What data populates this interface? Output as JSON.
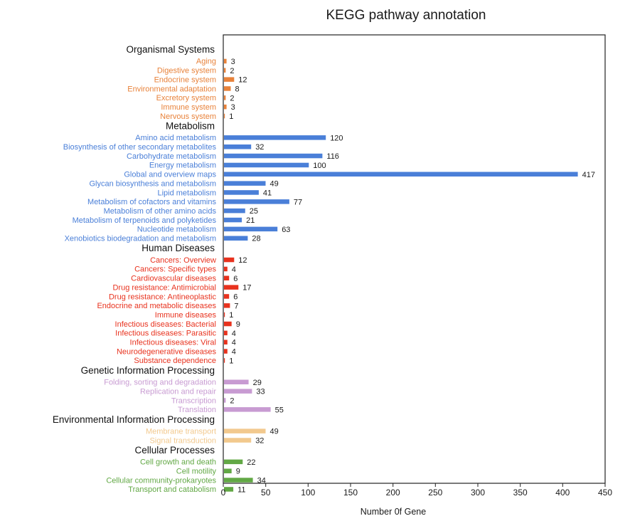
{
  "chart_data": {
    "type": "bar",
    "orientation": "horizontal",
    "title": "KEGG pathway annotation",
    "xlabel": "Number 0f Gene",
    "xlim": [
      0,
      450
    ],
    "xticks": [
      0,
      50,
      100,
      150,
      200,
      250,
      300,
      350,
      400,
      450
    ],
    "grid": false,
    "groups": [
      {
        "name": "Organismal Systems",
        "color": "#e8823a",
        "categories": [
          "Aging",
          "Digestive system",
          "Endocrine system",
          "Environmental adaptation",
          "Excretory system",
          "Immune system",
          "Nervous system"
        ],
        "values": [
          3,
          2,
          12,
          8,
          2,
          3,
          1
        ]
      },
      {
        "name": "Metabolism",
        "color": "#4a7fd8",
        "categories": [
          "Amino acid metabolism",
          "Biosynthesis of other secondary metabolites",
          "Carbohydrate metabolism",
          "Energy metabolism",
          "Global and overview maps",
          "Glycan biosynthesis and metabolism",
          "Lipid metabolism",
          "Metabolism of cofactors and vitamins",
          "Metabolism of other amino acids",
          "Metabolism of terpenoids and polyketides",
          "Nucleotide metabolism",
          "Xenobiotics biodegradation and metabolism"
        ],
        "values": [
          120,
          32,
          116,
          100,
          417,
          49,
          41,
          77,
          25,
          21,
          63,
          28
        ]
      },
      {
        "name": "Human Diseases",
        "color": "#e8321e",
        "categories": [
          "Cancers: Overview",
          "Cancers: Specific types",
          "Cardiovascular diseases",
          "Drug resistance: Antimicrobial",
          "Drug resistance: Antineoplastic",
          "Endocrine and metabolic diseases",
          "Immune diseases",
          "Infectious diseases: Bacterial",
          "Infectious diseases: Parasitic",
          "Infectious diseases: Viral",
          "Neurodegenerative diseases",
          "Substance dependence"
        ],
        "values": [
          12,
          4,
          6,
          17,
          6,
          7,
          1,
          9,
          4,
          4,
          4,
          1
        ]
      },
      {
        "name": "Genetic Information Processing",
        "color": "#c89bd2",
        "categories": [
          "Folding, sorting and degradation",
          "Replication and repair",
          "Transcription",
          "Translation"
        ],
        "values": [
          29,
          33,
          2,
          55
        ]
      },
      {
        "name": "Environmental Information Processing",
        "color": "#f2c98e",
        "categories": [
          "Membrane transport",
          "Signal transduction"
        ],
        "values": [
          49,
          32
        ]
      },
      {
        "name": "Cellular Processes",
        "color": "#62a845",
        "categories": [
          "Cell growth and death",
          "Cell motility",
          "Cellular community-prokaryotes",
          "Transport and catabolism"
        ],
        "values": [
          22,
          9,
          34,
          11
        ]
      }
    ]
  }
}
